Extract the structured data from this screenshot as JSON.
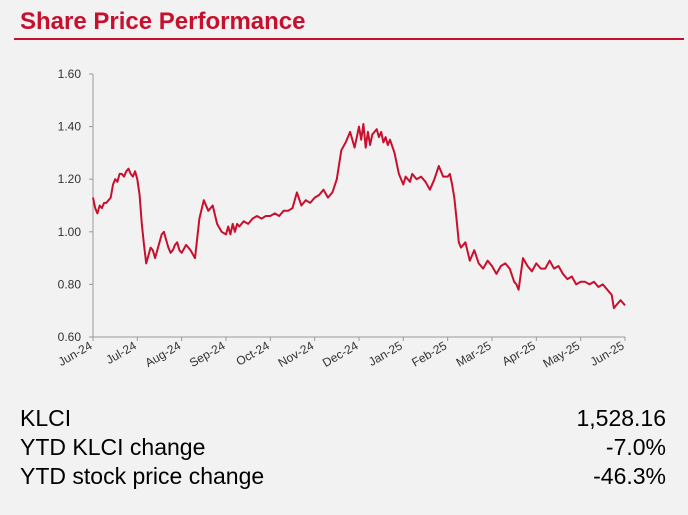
{
  "header": {
    "title": "Share Price Performance"
  },
  "colors": {
    "accent": "#c8102e",
    "line": "#c8102e",
    "axis": "#999999"
  },
  "chart_data": {
    "type": "line",
    "xlabel": "",
    "ylabel": "",
    "ylim": [
      0.6,
      1.6
    ],
    "yticks": [
      "1.60",
      "1.40",
      "1.20",
      "1.00",
      "0.80",
      "0.60"
    ],
    "xticks": [
      "Jun-24",
      "Jul-24",
      "Aug-24",
      "Sep-24",
      "Oct-24",
      "Nov-24",
      "Dec-24",
      "Jan-25",
      "Feb-25",
      "Mar-25",
      "Apr-25",
      "May-25",
      "Jun-25"
    ],
    "grid": false,
    "x": [
      0.0,
      0.05,
      0.1,
      0.15,
      0.2,
      0.25,
      0.3,
      0.35,
      0.4,
      0.45,
      0.5,
      0.55,
      0.6,
      0.65,
      0.7,
      0.75,
      0.8,
      0.85,
      0.9,
      0.95,
      1.0,
      1.05,
      1.1,
      1.15,
      1.2,
      1.25,
      1.3,
      1.35,
      1.4,
      1.45,
      1.5,
      1.55,
      1.6,
      1.65,
      1.7,
      1.75,
      1.8,
      1.85,
      1.9,
      1.95,
      2.0,
      2.1,
      2.2,
      2.3,
      2.4,
      2.5,
      2.6,
      2.7,
      2.8,
      2.9,
      3.0,
      3.05,
      3.1,
      3.15,
      3.2,
      3.25,
      3.3,
      3.4,
      3.5,
      3.6,
      3.7,
      3.8,
      3.9,
      4.0,
      4.1,
      4.2,
      4.3,
      4.4,
      4.5,
      4.6,
      4.7,
      4.8,
      4.9,
      5.0,
      5.1,
      5.2,
      5.3,
      5.4,
      5.5,
      5.6,
      5.7,
      5.8,
      5.9,
      6.0,
      6.05,
      6.1,
      6.15,
      6.2,
      6.25,
      6.3,
      6.35,
      6.4,
      6.45,
      6.5,
      6.55,
      6.6,
      6.65,
      6.7,
      6.8,
      6.9,
      7.0,
      7.05,
      7.1,
      7.15,
      7.2,
      7.3,
      7.4,
      7.5,
      7.6,
      7.7,
      7.8,
      7.9,
      8.0,
      8.05,
      8.1,
      8.15,
      8.2,
      8.25,
      8.3,
      8.4,
      8.5,
      8.6,
      8.7,
      8.8,
      8.9,
      9.0,
      9.1,
      9.2,
      9.3,
      9.4,
      9.5,
      9.55,
      9.6,
      9.7,
      9.8,
      9.9,
      10.0,
      10.1,
      10.2,
      10.3,
      10.4,
      10.5,
      10.6,
      10.7,
      10.8,
      10.9,
      11.0,
      11.1,
      11.2,
      11.3,
      11.4,
      11.5,
      11.6,
      11.7,
      11.75,
      11.8,
      11.9,
      12.0
    ],
    "series": [
      {
        "values": [
          1.13,
          1.09,
          1.07,
          1.1,
          1.09,
          1.11,
          1.11,
          1.12,
          1.13,
          1.18,
          1.2,
          1.19,
          1.22,
          1.22,
          1.21,
          1.23,
          1.24,
          1.22,
          1.21,
          1.23,
          1.2,
          1.14,
          1.03,
          0.95,
          0.88,
          0.91,
          0.94,
          0.93,
          0.9,
          0.93,
          0.96,
          0.99,
          1.0,
          0.97,
          0.94,
          0.92,
          0.93,
          0.95,
          0.96,
          0.93,
          0.92,
          0.95,
          0.93,
          0.9,
          1.05,
          1.12,
          1.08,
          1.1,
          1.03,
          1.0,
          0.99,
          1.02,
          0.99,
          1.03,
          1.0,
          1.03,
          1.02,
          1.04,
          1.03,
          1.05,
          1.06,
          1.05,
          1.06,
          1.06,
          1.07,
          1.06,
          1.08,
          1.08,
          1.09,
          1.15,
          1.1,
          1.12,
          1.11,
          1.13,
          1.14,
          1.16,
          1.13,
          1.15,
          1.2,
          1.31,
          1.34,
          1.38,
          1.32,
          1.4,
          1.35,
          1.41,
          1.32,
          1.38,
          1.33,
          1.37,
          1.38,
          1.39,
          1.36,
          1.38,
          1.34,
          1.36,
          1.33,
          1.35,
          1.3,
          1.22,
          1.18,
          1.21,
          1.2,
          1.19,
          1.22,
          1.2,
          1.21,
          1.19,
          1.16,
          1.2,
          1.25,
          1.21,
          1.21,
          1.22,
          1.18,
          1.13,
          1.05,
          0.96,
          0.94,
          0.96,
          0.89,
          0.93,
          0.88,
          0.86,
          0.89,
          0.87,
          0.84,
          0.87,
          0.88,
          0.86,
          0.81,
          0.8,
          0.78,
          0.9,
          0.87,
          0.85,
          0.88,
          0.86,
          0.86,
          0.89,
          0.86,
          0.87,
          0.84,
          0.82,
          0.83,
          0.8,
          0.81,
          0.81,
          0.8,
          0.81,
          0.79,
          0.8,
          0.78,
          0.76,
          0.71,
          0.72,
          0.74,
          0.72
        ]
      }
    ]
  },
  "stats": [
    {
      "label": "KLCI",
      "value": "1,528.16"
    },
    {
      "label": "YTD KLCI change",
      "value": "-7.0%"
    },
    {
      "label": "YTD stock price change",
      "value": "-46.3%"
    }
  ]
}
